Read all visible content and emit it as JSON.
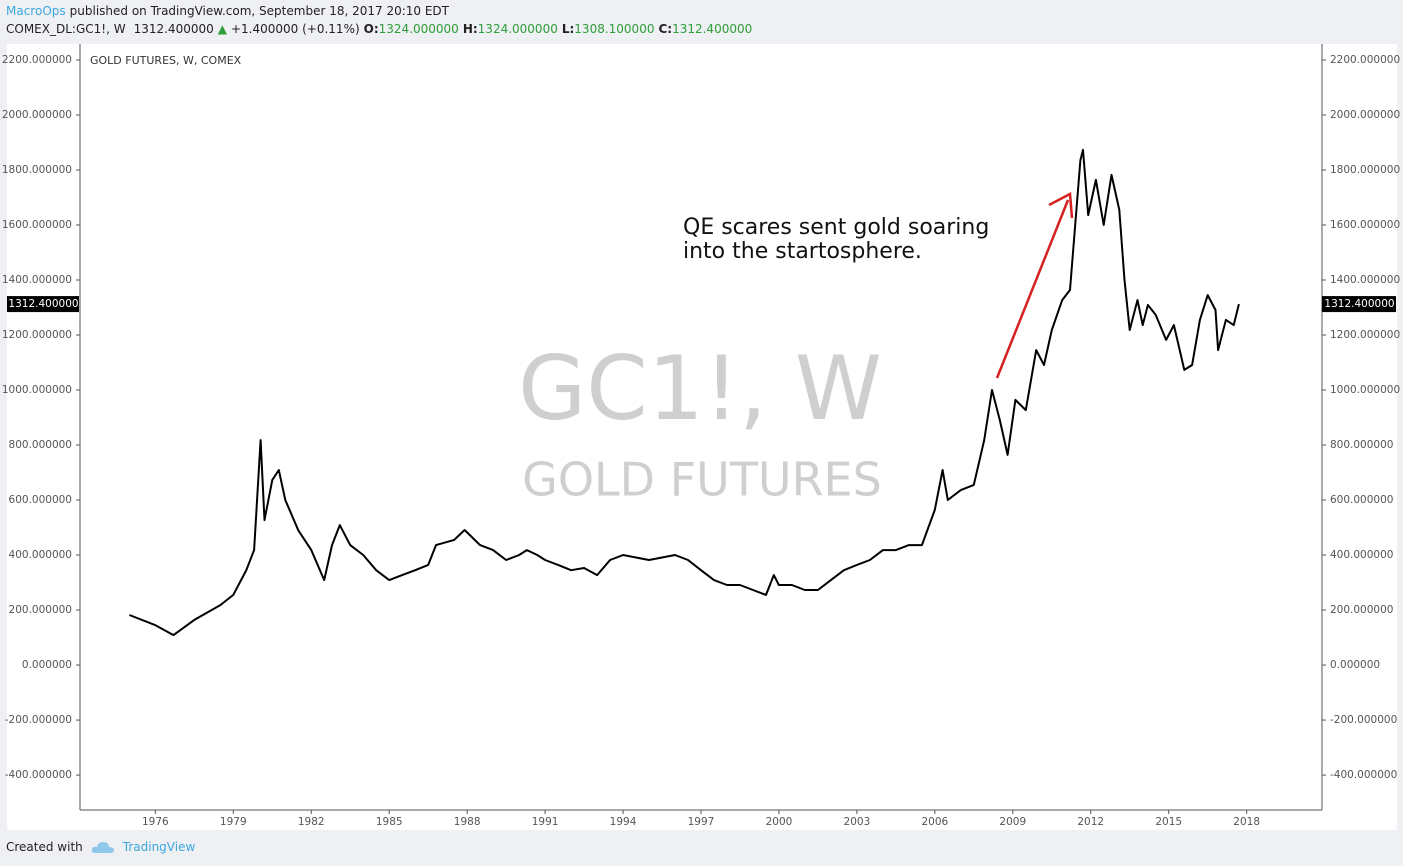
{
  "chart_data": {
    "type": "line",
    "header": {
      "author": "MacroOps",
      "published": "published on TradingView.com, September 18, 2017 20:10 EDT",
      "symbol": "COMEX_DL:GC1!, W",
      "price": "1312.400000",
      "change": "+1.400000 (+0.11%)",
      "open_label": "O:",
      "open": "1324.000000",
      "high_label": "H:",
      "high": "1324.000000",
      "low_label": "L:",
      "low": "1308.100000",
      "close_label": "C:",
      "close": "1312.400000"
    },
    "title": "GOLD FUTURES, W, COMEX",
    "watermark": [
      "GC1!, W",
      "GOLD FUTURES"
    ],
    "annotation": [
      "QE scares sent gold soaring",
      "into the startosphere."
    ],
    "last_label": "1312.400000",
    "footer": {
      "created": "Created with",
      "brand": "TradingView"
    },
    "x": [
      1975.0,
      1976.0,
      1976.7,
      1977.5,
      1978.5,
      1979.0,
      1979.5,
      1979.8,
      1980.05,
      1980.2,
      1980.5,
      1980.75,
      1981.0,
      1981.5,
      1982.0,
      1982.5,
      1982.8,
      1983.1,
      1983.5,
      1984.0,
      1984.5,
      1985.0,
      1985.5,
      1986.0,
      1986.5,
      1986.8,
      1987.5,
      1987.9,
      1988.5,
      1989.0,
      1989.5,
      1990.0,
      1990.3,
      1990.7,
      1991.0,
      1991.5,
      1992.0,
      1992.5,
      1993.0,
      1993.5,
      1994.0,
      1995.0,
      1996.0,
      1996.5,
      1997.0,
      1997.5,
      1998.0,
      1998.5,
      1999.0,
      1999.5,
      1999.8,
      2000.0,
      2000.5,
      2001.0,
      2001.5,
      2002.0,
      2002.5,
      2003.0,
      2003.5,
      2004.0,
      2004.5,
      2005.0,
      2005.5,
      2006.0,
      2006.3,
      2006.5,
      2007.0,
      2007.5,
      2007.9,
      2008.2,
      2008.5,
      2008.8,
      2009.1,
      2009.5,
      2009.9,
      2010.2,
      2010.5,
      2010.9,
      2011.2,
      2011.6,
      2011.7,
      2011.9,
      2012.2,
      2012.5,
      2012.8,
      2013.1,
      2013.3,
      2013.5,
      2013.8,
      2014.0,
      2014.2,
      2014.5,
      2014.9,
      2015.2,
      2015.6,
      2015.9,
      2016.2,
      2016.5,
      2016.8,
      2016.9,
      2017.2,
      2017.5,
      2017.7
    ],
    "series": [
      {
        "name": "GC1!",
        "color": "#000000",
        "values": [
          182,
          145,
          109,
          164,
          218,
          255,
          345,
          418,
          818,
          527,
          673,
          709,
          600,
          490,
          418,
          309,
          436,
          509,
          436,
          400,
          345,
          309,
          327,
          345,
          364,
          436,
          455,
          491,
          436,
          418,
          382,
          400,
          418,
          400,
          382,
          364,
          345,
          353,
          327,
          382,
          400,
          382,
          400,
          382,
          345,
          309,
          291,
          291,
          273,
          255,
          327,
          291,
          291,
          273,
          273,
          309,
          345,
          364,
          382,
          418,
          418,
          436,
          436,
          564,
          709,
          600,
          636,
          655,
          818,
          1000,
          891,
          764,
          964,
          927,
          1145,
          1091,
          1218,
          1327,
          1364,
          1836,
          1873,
          1636,
          1764,
          1600,
          1782,
          1655,
          1400,
          1218,
          1327,
          1236,
          1309,
          1273,
          1182,
          1236,
          1073,
          1091,
          1255,
          1345,
          1291,
          1145,
          1255,
          1236,
          1312.4
        ]
      }
    ],
    "xlim": [
      1973.1,
      2020.9
    ],
    "xticks": [
      1976,
      1979,
      1982,
      1985,
      1988,
      1991,
      1994,
      1997,
      2000,
      2003,
      2006,
      2009,
      2012,
      2015,
      2018
    ],
    "ylim": [
      -527,
      2258
    ],
    "yticks": [
      {
        "value": -400,
        "label": "-400.000000"
      },
      {
        "value": -200,
        "label": "-200.000000"
      },
      {
        "value": 0,
        "label": "0.000000"
      },
      {
        "value": 200,
        "label": "200.000000"
      },
      {
        "value": 400,
        "label": "400.000000"
      },
      {
        "value": 600,
        "label": "600.000000"
      },
      {
        "value": 800,
        "label": "800.000000"
      },
      {
        "value": 1000,
        "label": "1000.000000"
      },
      {
        "value": 1200,
        "label": "1200.000000"
      },
      {
        "value": 1400,
        "label": "1400.000000"
      },
      {
        "value": 1600,
        "label": "1600.000000"
      },
      {
        "value": 1800,
        "label": "1800.000000"
      },
      {
        "value": 2000,
        "label": "2000.000000"
      },
      {
        "value": 2200,
        "label": "2200.000000"
      }
    ],
    "grid": false
  }
}
